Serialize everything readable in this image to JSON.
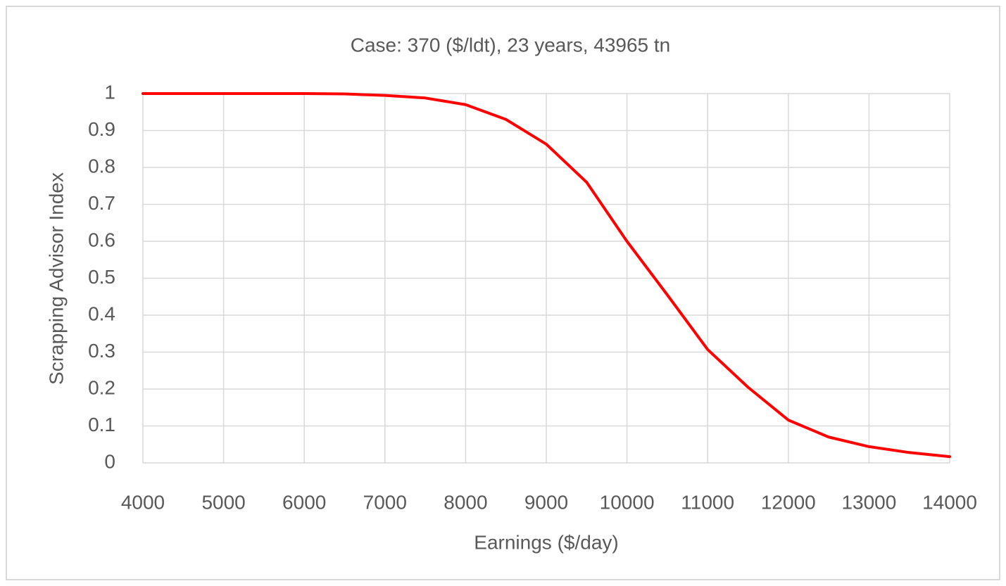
{
  "chart_data": {
    "type": "line",
    "title": "Case: 370 ($/ldt), 23 years, 43965 tn",
    "x_label": "Earnings ($/day)",
    "y_label": "Scrapping Advisor Index",
    "x": [
      4000,
      5000,
      6000,
      6500,
      7000,
      7500,
      8000,
      8500,
      9000,
      9500,
      10000,
      10500,
      11000,
      11500,
      12000,
      12500,
      13000,
      13500,
      14000
    ],
    "series": [
      {
        "name": "Scrapping Advisor Index",
        "color": "#ff0000",
        "values": [
          1,
          1,
          1,
          0.999,
          0.995,
          0.988,
          0.97,
          0.93,
          0.863,
          0.76,
          0.6,
          0.455,
          0.307,
          0.205,
          0.116,
          0.07,
          0.044,
          0.028,
          0.017
        ]
      }
    ],
    "xlim": [
      4000,
      14000
    ],
    "xticks": [
      4000,
      5000,
      6000,
      7000,
      8000,
      9000,
      10000,
      11000,
      12000,
      13000,
      14000
    ],
    "ylim": [
      0,
      1
    ],
    "yticks": [
      0,
      0.1,
      0.2,
      0.3,
      0.4,
      0.5,
      0.6,
      0.7,
      0.8,
      0.9,
      1
    ],
    "grid": true
  }
}
